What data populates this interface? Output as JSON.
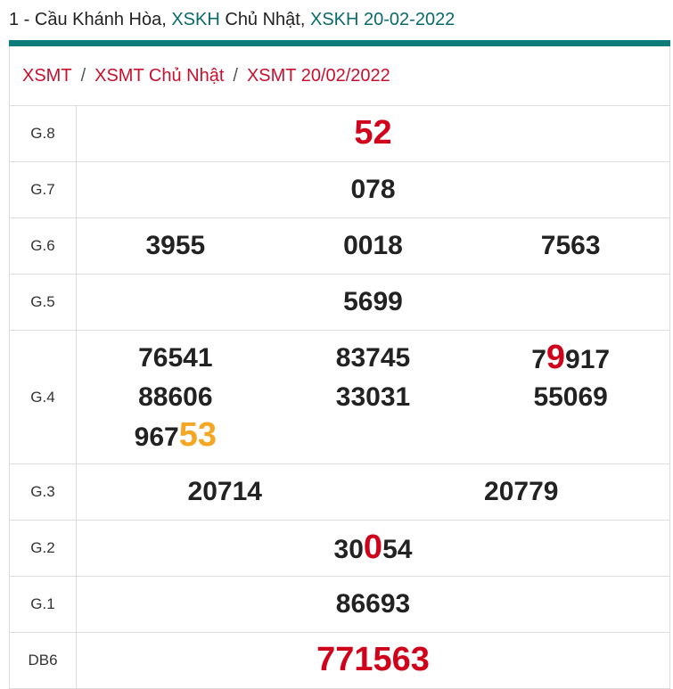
{
  "header": {
    "parts": [
      {
        "text": "1 - Cầu Khánh Hòa, "
      },
      {
        "text": "XSKH",
        "color": "#0b6b6b"
      },
      {
        "text": " Chủ Nhật, "
      },
      {
        "text": "XSKH 20-02-2022",
        "color": "#0b6b6b"
      }
    ]
  },
  "breadcrumb": {
    "items": [
      "XSMT",
      "XSMT Chủ Nhật",
      "XSMT 20/02/2022"
    ],
    "separator": "/"
  },
  "table": {
    "rows": [
      {
        "label": "G.8",
        "numbers": [
          [
            {
              "text": "52",
              "color": "#d0021b"
            }
          ]
        ]
      },
      {
        "label": "G.7",
        "numbers": [
          [
            {
              "text": "078"
            }
          ]
        ]
      },
      {
        "label": "G.6",
        "numbers": [
          [
            {
              "text": "3955"
            }
          ],
          [
            {
              "text": "0018"
            }
          ],
          [
            {
              "text": "7563"
            }
          ]
        ]
      },
      {
        "label": "G.5",
        "numbers": [
          [
            {
              "text": "5699"
            }
          ]
        ]
      },
      {
        "label": "G.4",
        "numbers": [
          [
            {
              "text": "76541"
            }
          ],
          [
            {
              "text": "83745"
            }
          ],
          [
            {
              "text": "7"
            },
            {
              "text": "9",
              "color": "#d0021b"
            },
            {
              "text": "917"
            }
          ],
          [
            {
              "text": "88606"
            }
          ],
          [
            {
              "text": "33031"
            }
          ],
          [
            {
              "text": "55069"
            }
          ],
          [
            {
              "text": "967"
            },
            {
              "text": "53",
              "color": "#f5a623"
            }
          ]
        ]
      },
      {
        "label": "G.3",
        "numbers": [
          [
            {
              "text": "20714"
            }
          ],
          [
            {
              "text": "20779"
            }
          ]
        ]
      },
      {
        "label": "G.2",
        "numbers": [
          [
            {
              "text": "30"
            },
            {
              "text": "0",
              "color": "#d0021b"
            },
            {
              "text": "54"
            }
          ]
        ]
      },
      {
        "label": "G.1",
        "numbers": [
          [
            {
              "text": "86693"
            }
          ]
        ]
      },
      {
        "label": "DB6",
        "numbers": [
          [
            {
              "text": "771563",
              "color": "#d0021b"
            }
          ]
        ]
      }
    ]
  }
}
